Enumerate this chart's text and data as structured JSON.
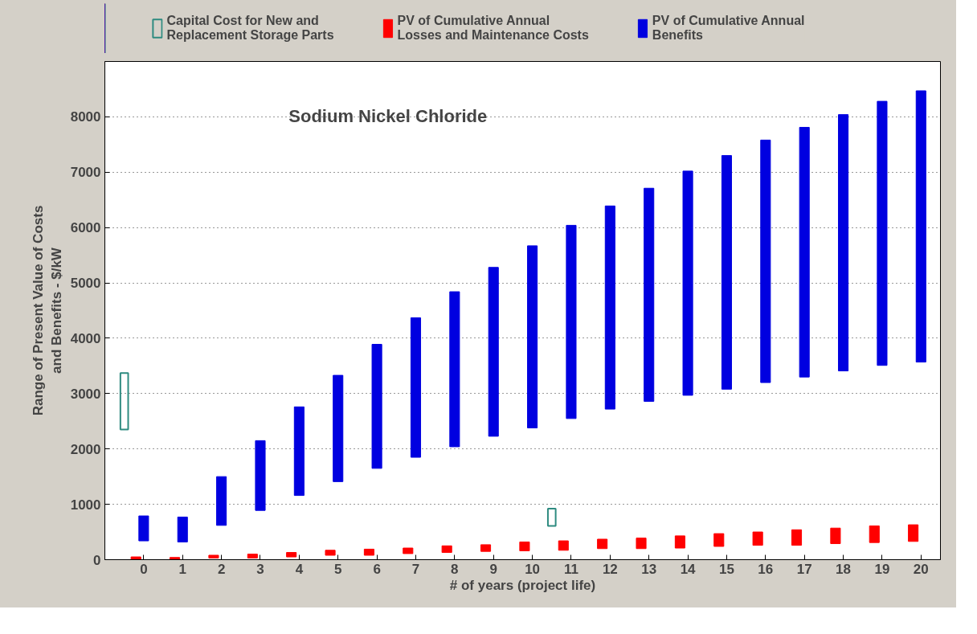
{
  "chart_data": {
    "type": "bar",
    "title": "Sodium Nickel Chloride",
    "xlabel": "# of years (project life)",
    "ylabel": "Range of Present Value of Costs and Benefits - $/kW",
    "xlim": [
      -1,
      20.5
    ],
    "xticks": [
      0,
      1,
      2,
      3,
      4,
      5,
      6,
      7,
      8,
      9,
      10,
      11,
      12,
      13,
      14,
      15,
      16,
      17,
      18,
      19,
      20
    ],
    "ylim": [
      0,
      9000
    ],
    "yticks": [
      0,
      1000,
      2000,
      3000,
      4000,
      5000,
      6000,
      7000,
      8000
    ],
    "grid": "y",
    "legend": "top",
    "series": [
      {
        "name": "Capital Cost for New and Replacement Storage Parts",
        "color": "#2e8b80",
        "x": [
          -0.5,
          10.5
        ],
        "base": [
          2350,
          610
        ],
        "values": [
          1020,
          310
        ]
      },
      {
        "name": "PV of Cumulative Annual Losses and Maintenance Costs",
        "color": "#ff0000",
        "x": [
          -0.2,
          0.8,
          1.8,
          2.8,
          3.8,
          4.8,
          5.8,
          6.8,
          7.8,
          8.8,
          9.8,
          10.8,
          11.8,
          12.8,
          13.8,
          14.8,
          15.8,
          16.8,
          17.8,
          18.8,
          19.8
        ],
        "base": [
          0,
          0,
          30,
          30,
          50,
          80,
          80,
          110,
          130,
          150,
          160,
          170,
          200,
          200,
          210,
          240,
          260,
          260,
          290,
          310,
          330
        ],
        "values": [
          50,
          40,
          50,
          70,
          80,
          90,
          110,
          100,
          120,
          120,
          160,
          170,
          170,
          190,
          220,
          230,
          240,
          280,
          280,
          300,
          300
        ]
      },
      {
        "name": "PV of Cumulative Annual Benefits",
        "color": "#0000e0",
        "x": [
          0,
          1,
          2,
          3,
          4,
          5,
          6,
          7,
          8,
          9,
          10,
          11,
          12,
          13,
          14,
          15,
          16,
          17,
          18,
          19,
          20
        ],
        "base": [
          340,
          320,
          620,
          890,
          1160,
          1410,
          1650,
          1850,
          2040,
          2230,
          2380,
          2550,
          2720,
          2860,
          2970,
          3080,
          3200,
          3300,
          3410,
          3510,
          3570
        ],
        "values": [
          450,
          450,
          880,
          1260,
          1600,
          1920,
          2240,
          2520,
          2800,
          3050,
          3290,
          3490,
          3670,
          3850,
          4050,
          4220,
          4380,
          4510,
          4630,
          4770,
          4900
        ]
      }
    ]
  }
}
